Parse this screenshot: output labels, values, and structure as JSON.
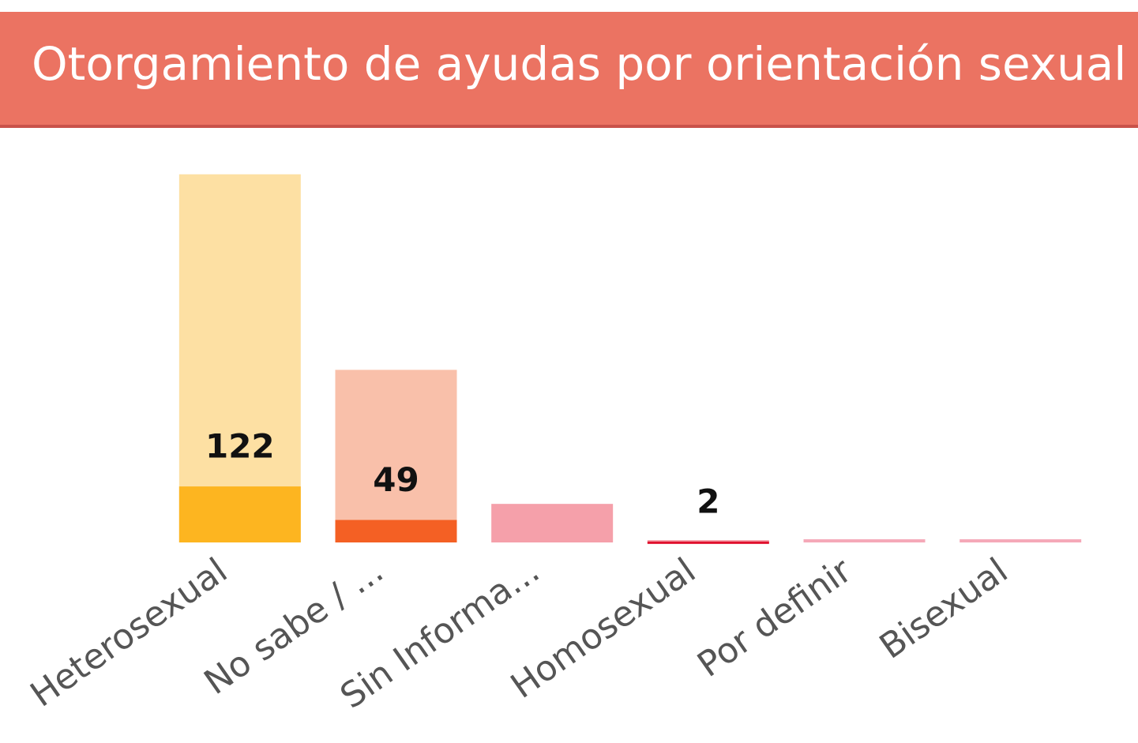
{
  "chart_data": {
    "type": "bar",
    "title": "Otorgamiento de ayudas por orientación sexual",
    "categories": [
      "Heterosexual",
      "No sabe / ...",
      "Sin Informa...",
      "Homosexual",
      "Por definir",
      "Bisexual"
    ],
    "series": [
      {
        "colors": [
          "#fde0a3",
          "#f9c0aa",
          "#f5a0aa",
          "#f5a0aa",
          "#f5a9b8",
          "#f5a9b8"
        ],
        "values": [
          802,
          376,
          84,
          5,
          7,
          7
        ]
      },
      {
        "colors": [
          "#fdb520",
          "#f46024",
          "#f5a0aa",
          "#e0102d",
          "#f5a9b8",
          "#f5a9b8"
        ],
        "values": [
          122,
          49,
          null,
          2,
          null,
          null
        ]
      }
    ],
    "ylim": [
      0,
      805
    ],
    "grid": false
  }
}
